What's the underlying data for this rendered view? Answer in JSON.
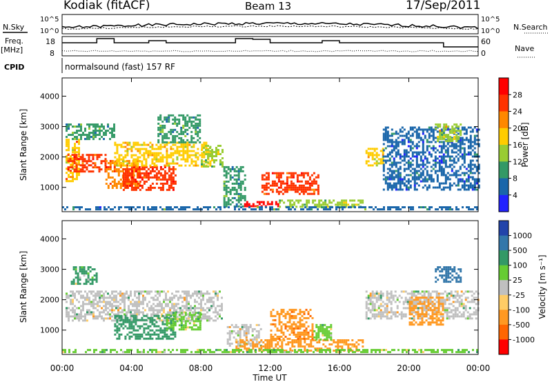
{
  "header": {
    "title": "Kodiak (fitACF)",
    "beam": "Beam 13",
    "date": "17/Sep/2011"
  },
  "left_labels": {
    "nsky": "N.Sky",
    "freq": "Freq.",
    "freq_unit": "[MHz]",
    "cpid": "CPID"
  },
  "right_labels": {
    "nsearch": "N.Search",
    "nave": "Nave"
  },
  "cpid_text": "normalsound (fast) 157 RF",
  "noise_axis": {
    "top": "10^5",
    "bottom": "10^0"
  },
  "freq_axis": {
    "top": "18",
    "bottom": "8"
  },
  "nave_axis": {
    "top": "60",
    "bottom": "0"
  },
  "power_colorbar": {
    "label": "Power [dB]",
    "ticks": [
      "28",
      "24",
      "20",
      "16",
      "12",
      "8",
      "4"
    ],
    "colors": [
      "#ff0000",
      "#ff3300",
      "#ff8800",
      "#ffcc00",
      "#99cc33",
      "#339966",
      "#1a66aa",
      "#2222ff"
    ]
  },
  "velocity_colorbar": {
    "label": "Velocity [m s⁻¹]",
    "ticks": [
      "1000",
      "500",
      "100",
      "25",
      "-25",
      "-100",
      "-500",
      "-1000"
    ],
    "colors": [
      "#2244aa",
      "#3377aa",
      "#339966",
      "#66cc33",
      "#c0c0c0",
      "#ffcc66",
      "#ff9922",
      "#ff6600",
      "#ff0000"
    ]
  },
  "chart_data": [
    {
      "type": "heatmap",
      "name": "power",
      "ylabel": "Slant Range [km]",
      "y_ticks": [
        1000,
        2000,
        3000,
        4000
      ],
      "ylim": [
        200,
        4600
      ],
      "xlim": [
        0,
        24
      ],
      "colorbar_range": [
        0,
        32
      ],
      "regions": [
        {
          "t0": 0.2,
          "t1": 1.0,
          "r0": 1200,
          "r1": 2600,
          "v": 20
        },
        {
          "t0": 0.3,
          "t1": 2.5,
          "r0": 1500,
          "r1": 2100,
          "v": 26
        },
        {
          "t0": 0.2,
          "t1": 3.0,
          "r0": 2600,
          "r1": 3100,
          "v": 10
        },
        {
          "t0": 2.5,
          "t1": 4.5,
          "r0": 1000,
          "r1": 1900,
          "v": 24
        },
        {
          "t0": 3.5,
          "t1": 6.5,
          "r0": 900,
          "r1": 1700,
          "v": 28
        },
        {
          "t0": 3.0,
          "t1": 8.5,
          "r0": 1700,
          "r1": 2500,
          "v": 18
        },
        {
          "t0": 5.5,
          "t1": 8.0,
          "r0": 2500,
          "r1": 3400,
          "v": 10
        },
        {
          "t0": 8.0,
          "t1": 9.2,
          "r0": 1700,
          "r1": 2400,
          "v": 14
        },
        {
          "t0": 9.3,
          "t1": 10.5,
          "r0": 400,
          "r1": 1700,
          "v": 10
        },
        {
          "t0": 10.5,
          "t1": 12.5,
          "r0": 350,
          "r1": 550,
          "v": 30
        },
        {
          "t0": 11.5,
          "t1": 14.8,
          "r0": 800,
          "r1": 1500,
          "v": 26
        },
        {
          "t0": 12.5,
          "t1": 17.3,
          "r0": 350,
          "r1": 600,
          "v": 14
        },
        {
          "t0": 17.5,
          "t1": 18.5,
          "r0": 1700,
          "r1": 2300,
          "v": 18
        },
        {
          "t0": 18.5,
          "t1": 24.0,
          "r0": 900,
          "r1": 3000,
          "v": 6
        },
        {
          "t0": 21.5,
          "t1": 23.0,
          "r0": 2500,
          "r1": 3100,
          "v": 16
        },
        {
          "t0": 0.0,
          "t1": 24.0,
          "r0": 250,
          "r1": 380,
          "v": 8
        }
      ]
    },
    {
      "type": "heatmap",
      "name": "velocity",
      "ylabel": "Slant Range [km]",
      "y_ticks": [
        1000,
        2000,
        3000,
        4000
      ],
      "ylim": [
        200,
        4600
      ],
      "xlim": [
        0,
        24
      ],
      "regions": [
        {
          "t0": 0.2,
          "t1": 9.2,
          "r0": 1300,
          "r1": 2300,
          "v": 0
        },
        {
          "t0": 3.0,
          "t1": 6.5,
          "r0": 700,
          "r1": 1500,
          "v": 300
        },
        {
          "t0": 0.5,
          "t1": 2.0,
          "r0": 2500,
          "r1": 3100,
          "v": 100
        },
        {
          "t0": 6.0,
          "t1": 8.0,
          "r0": 1000,
          "r1": 1600,
          "v": 60
        },
        {
          "t0": 9.5,
          "t1": 11.5,
          "r0": 500,
          "r1": 1200,
          "v": 0
        },
        {
          "t0": 10.0,
          "t1": 17.3,
          "r0": 300,
          "r1": 700,
          "v": -200
        },
        {
          "t0": 12.0,
          "t1": 14.5,
          "r0": 700,
          "r1": 1700,
          "v": -500
        },
        {
          "t0": 14.5,
          "t1": 15.5,
          "r0": 700,
          "r1": 1200,
          "v": 60
        },
        {
          "t0": 17.5,
          "t1": 24.0,
          "r0": 1400,
          "r1": 2300,
          "v": 0
        },
        {
          "t0": 20.0,
          "t1": 22.0,
          "r0": 1200,
          "r1": 2100,
          "v": -200
        },
        {
          "t0": 21.5,
          "t1": 23.0,
          "r0": 2600,
          "r1": 3100,
          "v": 800
        },
        {
          "t0": 0.0,
          "t1": 24.0,
          "r0": 250,
          "r1": 380,
          "v": 60
        }
      ]
    }
  ],
  "x_axis": {
    "label": "Time UT",
    "ticks": [
      "00:00",
      "04:00",
      "08:00",
      "12:00",
      "16:00",
      "20:00",
      "00:00"
    ]
  }
}
